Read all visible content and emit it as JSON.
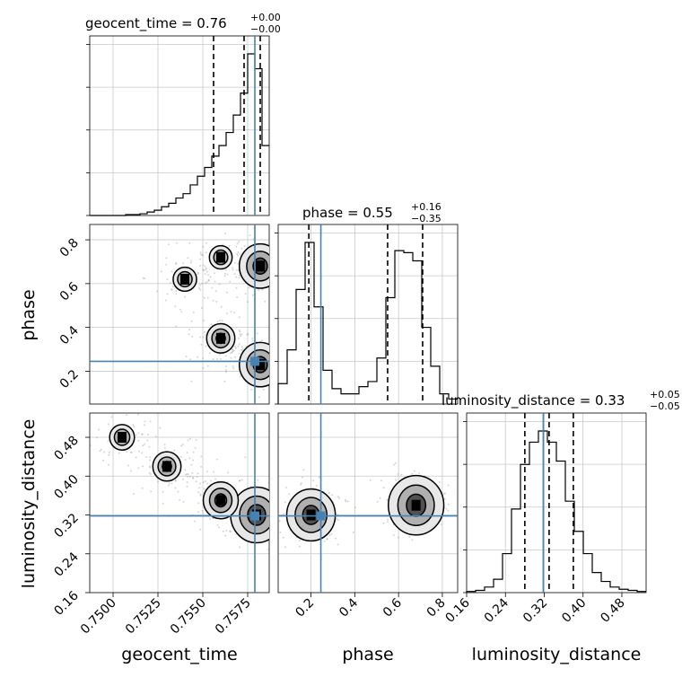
{
  "colors": {
    "truth": "#4682b4",
    "hist": "#000000",
    "grid": "#c8c8c8",
    "density_high": "#000000",
    "density_low": "#f0f0f0"
  },
  "panels": {
    "geocent_time": {
      "title": "geocent_time = 0.76",
      "sup": "+0.00",
      "sub": "−0.00",
      "xlabel": "geocent_time"
    },
    "phase": {
      "title": "phase = 0.55",
      "sup": "+0.16",
      "sub": "−0.35",
      "ylabel": "phase",
      "xlabel": "phase"
    },
    "luminosity_distance": {
      "title": "luminosity_distance = 0.33",
      "sup": "+0.05",
      "sub": "−0.05",
      "ylabel": "luminosity_distance",
      "xlabel": "luminosity_distance"
    }
  },
  "chart_data": {
    "type": "corner",
    "parameters": [
      "geocent_time",
      "phase",
      "luminosity_distance"
    ],
    "grid": true,
    "truths": {
      "geocent_time": 0.7579,
      "phase": 0.245,
      "luminosity_distance": 0.318
    },
    "quantiles": {
      "geocent_time": [
        0.7556,
        0.7573,
        0.7582
      ],
      "phase": [
        0.19,
        0.55,
        0.71
      ],
      "luminosity_distance": [
        0.28,
        0.33,
        0.38
      ]
    },
    "ranges": {
      "geocent_time": [
        0.7487,
        0.7587
      ],
      "phase": [
        0.05,
        0.87
      ],
      "luminosity_distance": [
        0.16,
        0.53
      ]
    },
    "ticks": {
      "geocent_time": [
        "0.7500",
        "0.7525",
        "0.7550",
        "0.7575"
      ],
      "phase": [
        "0.2",
        "0.4",
        "0.6",
        "0.8"
      ],
      "luminosity_distance": [
        "0.16",
        "0.24",
        "0.32",
        "0.40",
        "0.48"
      ]
    },
    "histograms": {
      "geocent_time": [
        0,
        0,
        0,
        0,
        0,
        1,
        1,
        2,
        4,
        6,
        10,
        14,
        20,
        25,
        35,
        45,
        55,
        68,
        80,
        95,
        115,
        140,
        185,
        168,
        80
      ],
      "phase": [
        20,
        53,
        112,
        158,
        95,
        33,
        15,
        10,
        10,
        17,
        22,
        45,
        104,
        150,
        148,
        140,
        75,
        37,
        10,
        5
      ],
      "luminosity_distance": [
        1,
        2,
        5,
        12,
        35,
        75,
        115,
        135,
        145,
        135,
        118,
        82,
        55,
        35,
        18,
        10,
        5,
        3,
        2,
        1
      ]
    },
    "clouds": [
      {
        "x": "geocent_time",
        "y": "phase",
        "centers": [
          [
            0.7582,
            0.68,
            0.35
          ],
          [
            0.7582,
            0.23,
            0.35
          ],
          [
            0.756,
            0.35,
            0.15
          ],
          [
            0.754,
            0.62,
            0.08
          ],
          [
            0.756,
            0.72,
            0.07
          ]
        ]
      },
      {
        "x": "geocent_time",
        "y": "luminosity_distance",
        "centers": [
          [
            0.758,
            0.32,
            0.5
          ],
          [
            0.756,
            0.35,
            0.25
          ],
          [
            0.753,
            0.42,
            0.15
          ],
          [
            0.7505,
            0.48,
            0.1
          ]
        ]
      },
      {
        "x": "phase",
        "y": "luminosity_distance",
        "centers": [
          [
            0.2,
            0.32,
            0.45
          ],
          [
            0.68,
            0.34,
            0.55
          ]
        ]
      }
    ]
  }
}
